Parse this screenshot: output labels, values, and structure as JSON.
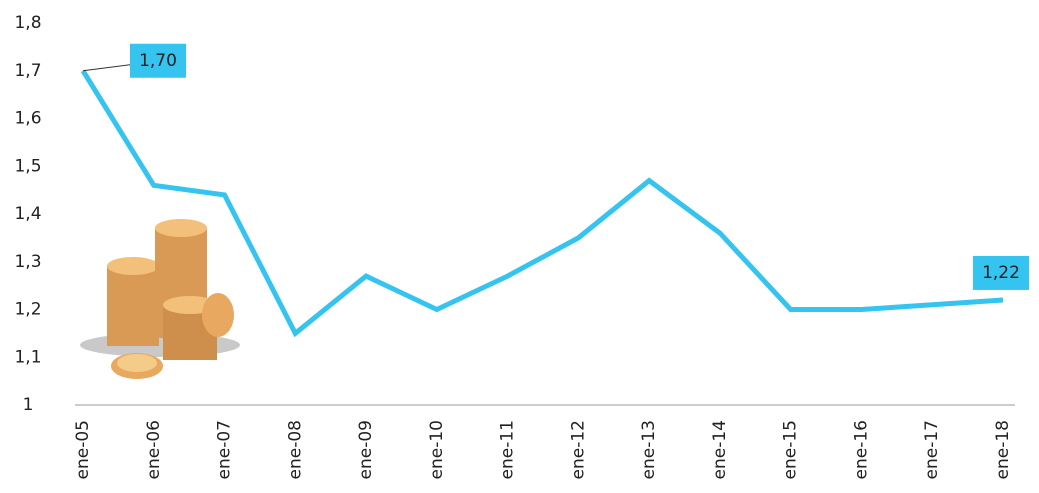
{
  "chart_data": {
    "type": "line",
    "categories": [
      "ene-05",
      "ene-06",
      "ene-07",
      "ene-08",
      "ene-09",
      "ene-10",
      "ene-11",
      "ene-12",
      "ene-13",
      "ene-14",
      "ene-15",
      "ene-16",
      "ene-17",
      "ene-18"
    ],
    "series": [
      {
        "color": "#35c4ef",
        "values": [
          1.7,
          1.46,
          1.44,
          1.15,
          1.27,
          1.2,
          1.27,
          1.35,
          1.47,
          1.36,
          1.2,
          1.2,
          1.21,
          1.22
        ],
        "value_labels": [
          "1,70",
          null,
          null,
          null,
          null,
          null,
          null,
          null,
          null,
          null,
          null,
          null,
          null,
          "1,22"
        ]
      }
    ],
    "ylim": [
      1,
      1.8
    ],
    "yticks": [
      1,
      {
        "value": 1.1,
        "label": "1,1"
      },
      {
        "value": 1.2,
        "label": "1,2"
      },
      {
        "value": 1.3,
        "label": "1,3"
      },
      {
        "value": 1.4,
        "label": "1,4"
      },
      {
        "value": 1.5,
        "label": "1,5"
      },
      {
        "value": 1.6,
        "label": "1,6"
      },
      {
        "value": 1.7,
        "label": "1,7"
      },
      {
        "value": 1.8,
        "label": "1,8"
      }
    ],
    "grid": false
  }
}
